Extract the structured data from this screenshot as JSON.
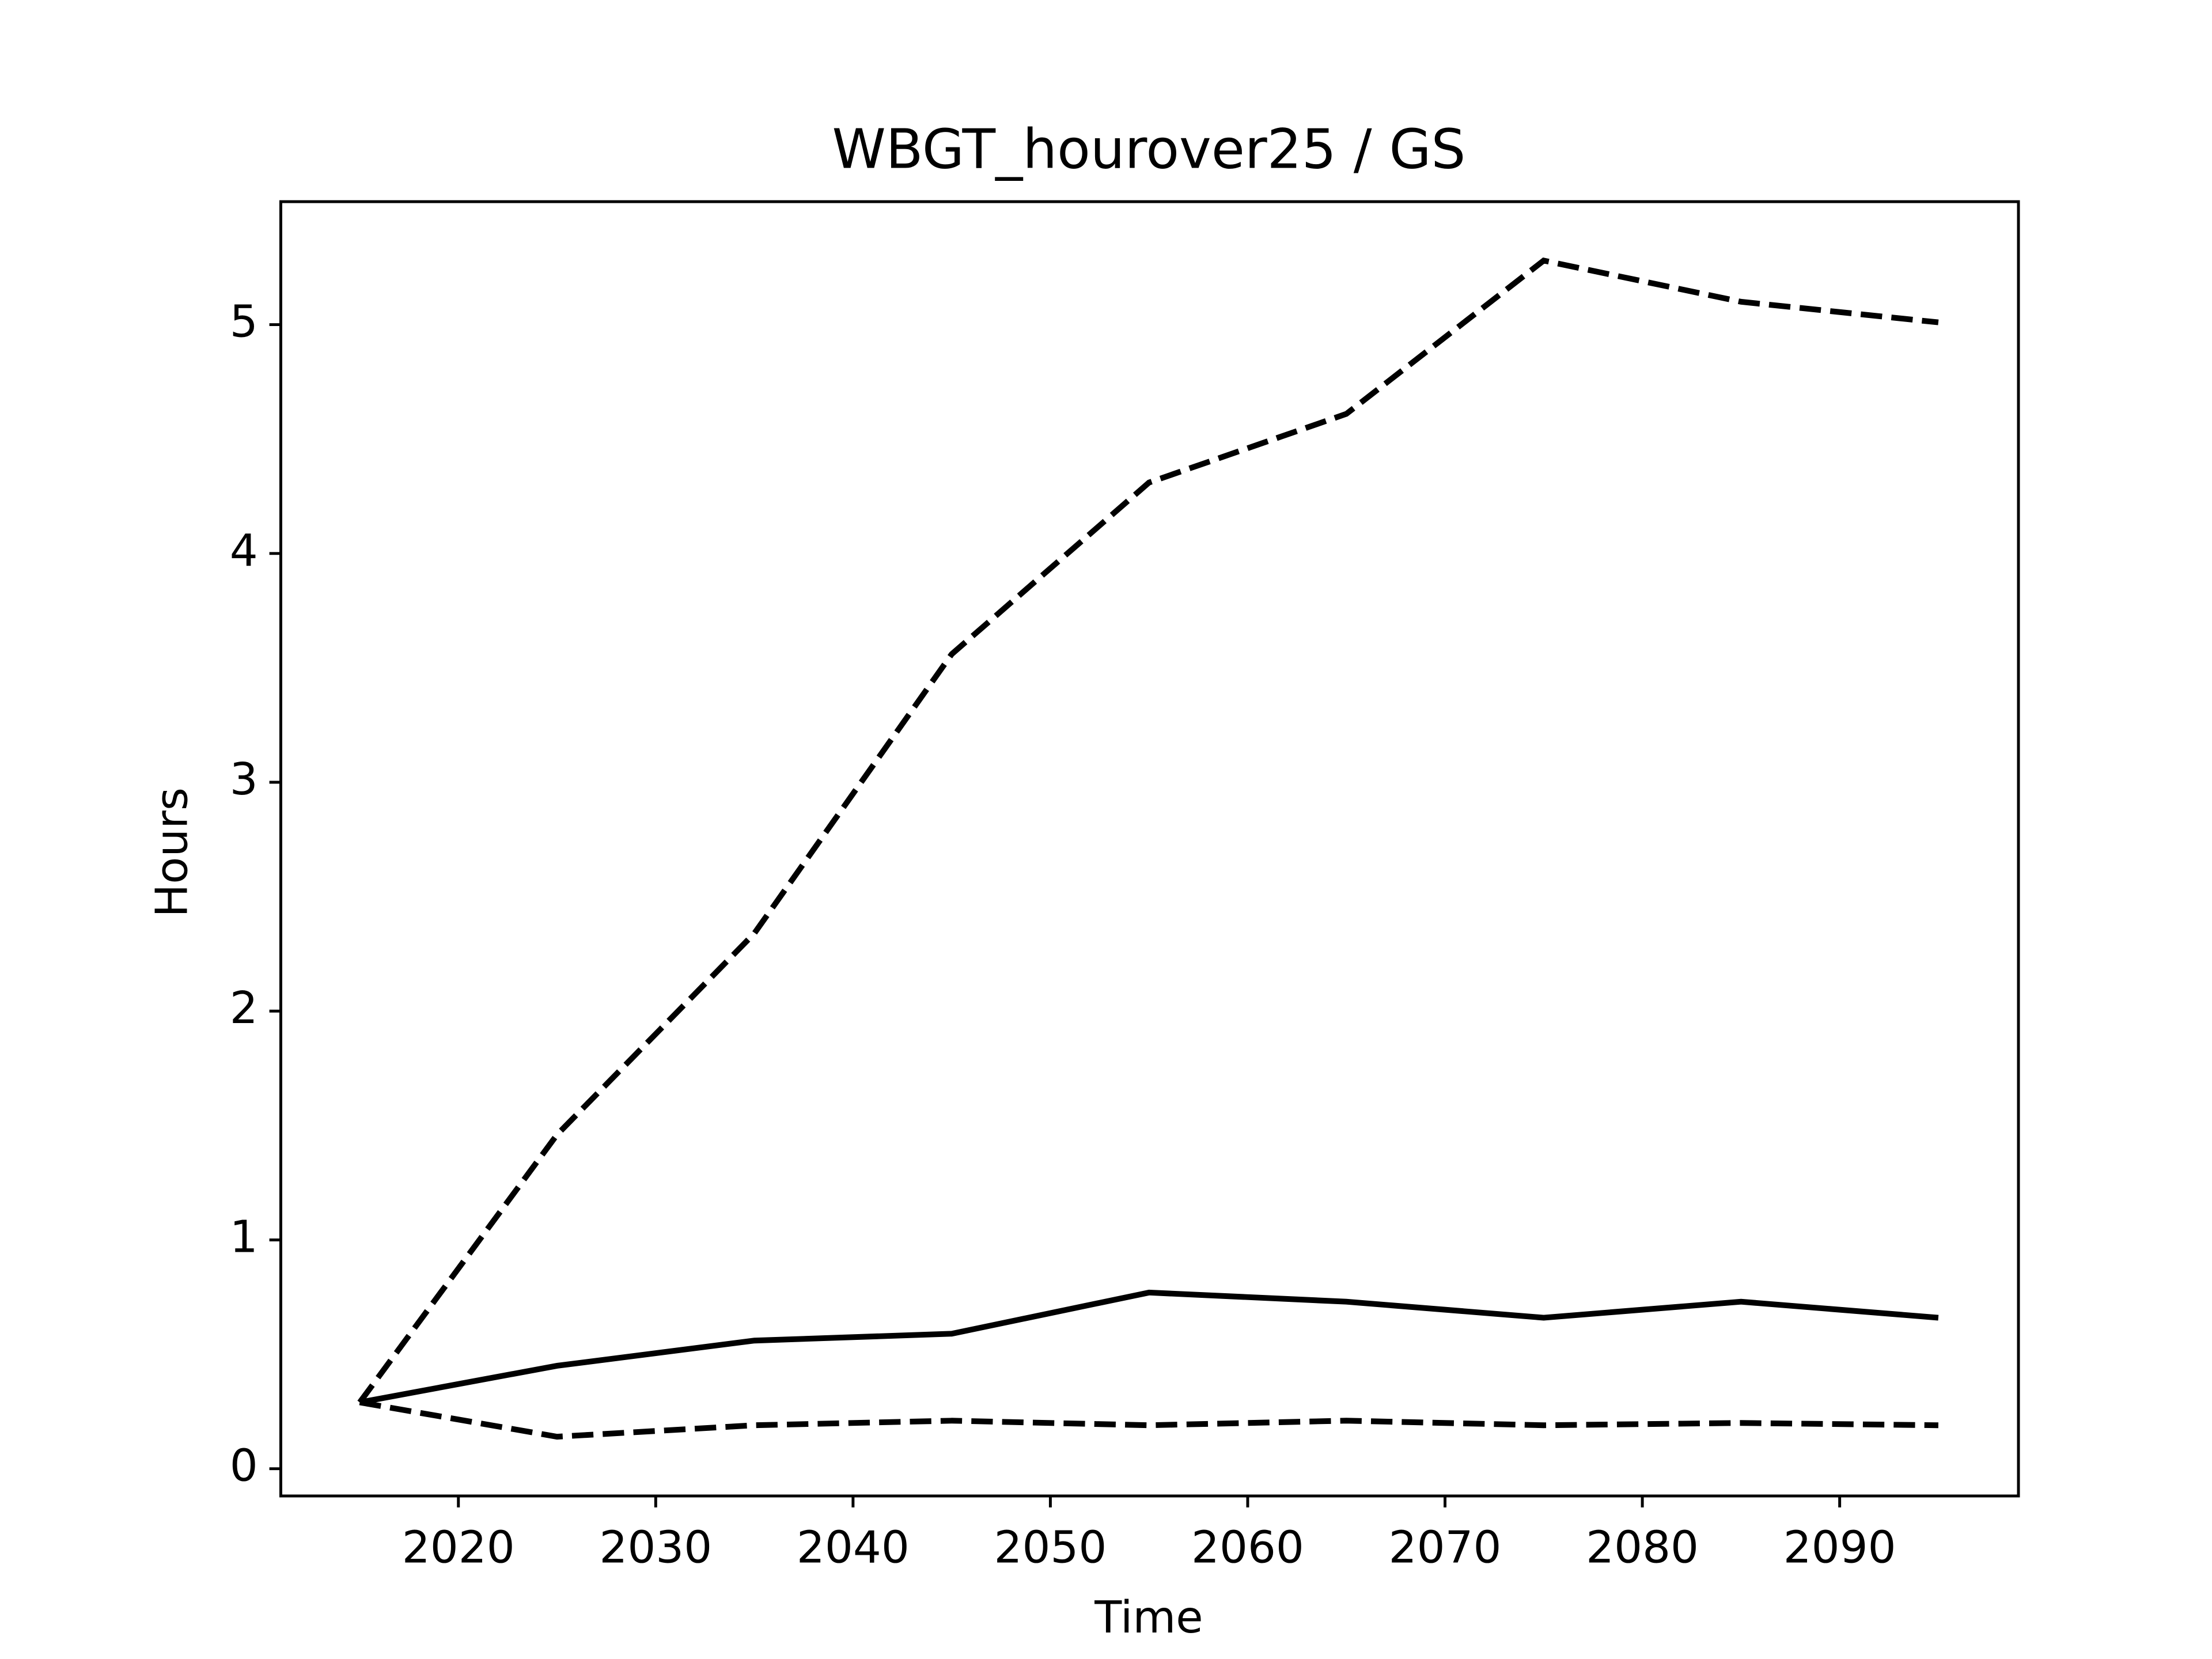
{
  "chart_data": {
    "type": "line",
    "title": "WBGT_hourover25 / GS",
    "xlabel": "Time",
    "ylabel": "Hours",
    "x": [
      2015,
      2025,
      2035,
      2045,
      2055,
      2065,
      2075,
      2085,
      2095
    ],
    "series": [
      {
        "color": "#000000",
        "dashed": false,
        "values": [
          0.29,
          0.45,
          0.56,
          0.59,
          0.77,
          0.73,
          0.66,
          0.73,
          0.66
        ]
      },
      {
        "color": "#000000",
        "dashed": true,
        "values": [
          0.29,
          1.46,
          2.34,
          3.56,
          4.31,
          4.61,
          5.28,
          5.1,
          5.01
        ]
      },
      {
        "color": "#000000",
        "dashed": true,
        "values": [
          0.29,
          0.14,
          0.19,
          0.21,
          0.19,
          0.21,
          0.19,
          0.2,
          0.19
        ]
      }
    ],
    "xlim": [
      2011,
      2099.06
    ],
    "xticks": [
      2020,
      2030,
      2040,
      2050,
      2060,
      2070,
      2080,
      2090
    ],
    "ylim": [
      -0.119,
      5.5375
    ],
    "yticks": [
      0,
      1,
      2,
      3,
      4,
      5
    ],
    "grid": false
  }
}
